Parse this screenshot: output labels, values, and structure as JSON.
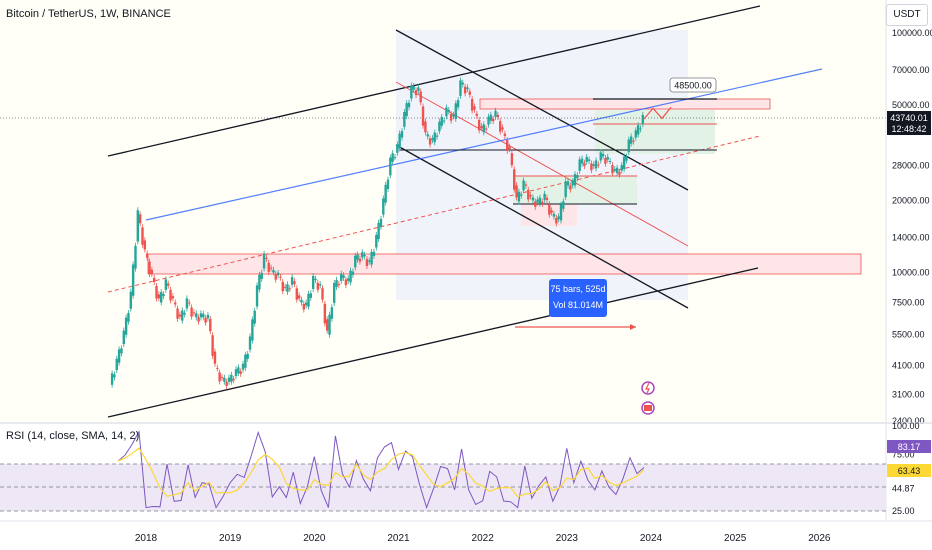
{
  "chart_data": {
    "type": "candlestick",
    "title": "Bitcoin / TetherUS, 1W, BINANCE",
    "y_scale": "log",
    "currency_label": "USDT",
    "y_ticks": [
      "100000.00",
      "70000.00",
      "50000.00",
      "43740.01",
      "28000.00",
      "20000.00",
      "14000.00",
      "10000.00",
      "7500.00",
      "5500.00",
      "4100.00",
      "3100.00",
      "2400.00"
    ],
    "y_tick_values": [
      100000,
      70000,
      50000,
      28000,
      20000,
      14000,
      10000,
      7500,
      5500,
      4100,
      3100,
      2400
    ],
    "x_ticks": [
      "2018",
      "2019",
      "2020",
      "2021",
      "2022",
      "2023",
      "2024",
      "2025",
      "2026"
    ],
    "last_price": {
      "value": "43740.01",
      "countdown": "12:48:42",
      "color": "#131722"
    },
    "target_label": "48500.00",
    "measure_tooltip": {
      "line1": "75 bars, 525d",
      "line2": "Vol 81.014M",
      "color": "#2962ff"
    },
    "price_series": [
      {
        "date": "2017-08",
        "value": 3400
      },
      {
        "date": "2017-09",
        "value": 4200
      },
      {
        "date": "2017-10",
        "value": 5500
      },
      {
        "date": "2017-11",
        "value": 8000
      },
      {
        "date": "2017-12",
        "value": 17500
      },
      {
        "date": "2018-01",
        "value": 12000
      },
      {
        "date": "2018-02",
        "value": 9500
      },
      {
        "date": "2018-03",
        "value": 7500
      },
      {
        "date": "2018-04",
        "value": 9000
      },
      {
        "date": "2018-05",
        "value": 7500
      },
      {
        "date": "2018-06",
        "value": 6300
      },
      {
        "date": "2018-07",
        "value": 7500
      },
      {
        "date": "2018-08",
        "value": 6500
      },
      {
        "date": "2018-09",
        "value": 6500
      },
      {
        "date": "2018-10",
        "value": 6400
      },
      {
        "date": "2018-11",
        "value": 4000
      },
      {
        "date": "2018-12",
        "value": 3500
      },
      {
        "date": "2019-01",
        "value": 3500
      },
      {
        "date": "2019-02",
        "value": 3800
      },
      {
        "date": "2019-03",
        "value": 4000
      },
      {
        "date": "2019-04",
        "value": 5200
      },
      {
        "date": "2019-05",
        "value": 8500
      },
      {
        "date": "2019-06",
        "value": 11500
      },
      {
        "date": "2019-07",
        "value": 10000
      },
      {
        "date": "2019-08",
        "value": 9600
      },
      {
        "date": "2019-09",
        "value": 8300
      },
      {
        "date": "2019-10",
        "value": 9200
      },
      {
        "date": "2019-11",
        "value": 7500
      },
      {
        "date": "2019-12",
        "value": 7200
      },
      {
        "date": "2020-01",
        "value": 9300
      },
      {
        "date": "2020-02",
        "value": 8600
      },
      {
        "date": "2020-03",
        "value": 5500
      },
      {
        "date": "2020-04",
        "value": 8700
      },
      {
        "date": "2020-05",
        "value": 9500
      },
      {
        "date": "2020-06",
        "value": 9100
      },
      {
        "date": "2020-07",
        "value": 11300
      },
      {
        "date": "2020-08",
        "value": 11700
      },
      {
        "date": "2020-09",
        "value": 10800
      },
      {
        "date": "2020-10",
        "value": 13800
      },
      {
        "date": "2020-11",
        "value": 19600
      },
      {
        "date": "2020-12",
        "value": 29000
      },
      {
        "date": "2021-01",
        "value": 33000
      },
      {
        "date": "2021-02",
        "value": 45000
      },
      {
        "date": "2021-03",
        "value": 58000
      },
      {
        "date": "2021-04",
        "value": 57000
      },
      {
        "date": "2021-05",
        "value": 37000
      },
      {
        "date": "2021-06",
        "value": 35000
      },
      {
        "date": "2021-07",
        "value": 41000
      },
      {
        "date": "2021-08",
        "value": 47000
      },
      {
        "date": "2021-09",
        "value": 43800
      },
      {
        "date": "2021-10",
        "value": 61000
      },
      {
        "date": "2021-11",
        "value": 57000
      },
      {
        "date": "2021-12",
        "value": 46000
      },
      {
        "date": "2022-01",
        "value": 38500
      },
      {
        "date": "2022-02",
        "value": 43000
      },
      {
        "date": "2022-03",
        "value": 45500
      },
      {
        "date": "2022-04",
        "value": 38000
      },
      {
        "date": "2022-05",
        "value": 31500
      },
      {
        "date": "2022-06",
        "value": 19800
      },
      {
        "date": "2022-07",
        "value": 23300
      },
      {
        "date": "2022-08",
        "value": 20000
      },
      {
        "date": "2022-09",
        "value": 19400
      },
      {
        "date": "2022-10",
        "value": 20500
      },
      {
        "date": "2022-11",
        "value": 17100
      },
      {
        "date": "2022-12",
        "value": 16500
      },
      {
        "date": "2023-01",
        "value": 23100
      },
      {
        "date": "2023-02",
        "value": 23100
      },
      {
        "date": "2023-03",
        "value": 28500
      },
      {
        "date": "2023-04",
        "value": 29200
      },
      {
        "date": "2023-05",
        "value": 27200
      },
      {
        "date": "2023-06",
        "value": 30500
      },
      {
        "date": "2023-07",
        "value": 29200
      },
      {
        "date": "2023-08",
        "value": 26000
      },
      {
        "date": "2023-09",
        "value": 27000
      },
      {
        "date": "2023-10",
        "value": 34500
      },
      {
        "date": "2023-11",
        "value": 37700
      },
      {
        "date": "2023-12",
        "value": 43740
      }
    ],
    "projection": [
      {
        "date": "2023-12",
        "value": 43740
      },
      {
        "date": "2024-01",
        "value": 48500
      },
      {
        "date": "2024-02",
        "value": 44000
      },
      {
        "date": "2024-03",
        "value": 49000
      }
    ],
    "rsi": {
      "label": "RSI (14, close, SMA, 14, 2)",
      "value_label": "83.17",
      "sma_label": "63.43",
      "y_ticks": [
        "100.00",
        "75.00",
        "62.95",
        "44.87",
        "25.00"
      ],
      "y_tick_values": [
        100,
        75,
        62.95,
        44.87,
        25
      ]
    },
    "colors": {
      "up": "#26a69a",
      "down": "#ef5350",
      "blue_line": "#2962ff",
      "rsi_line": "#7e57c2",
      "rsi_ma": "#fdd835"
    }
  }
}
